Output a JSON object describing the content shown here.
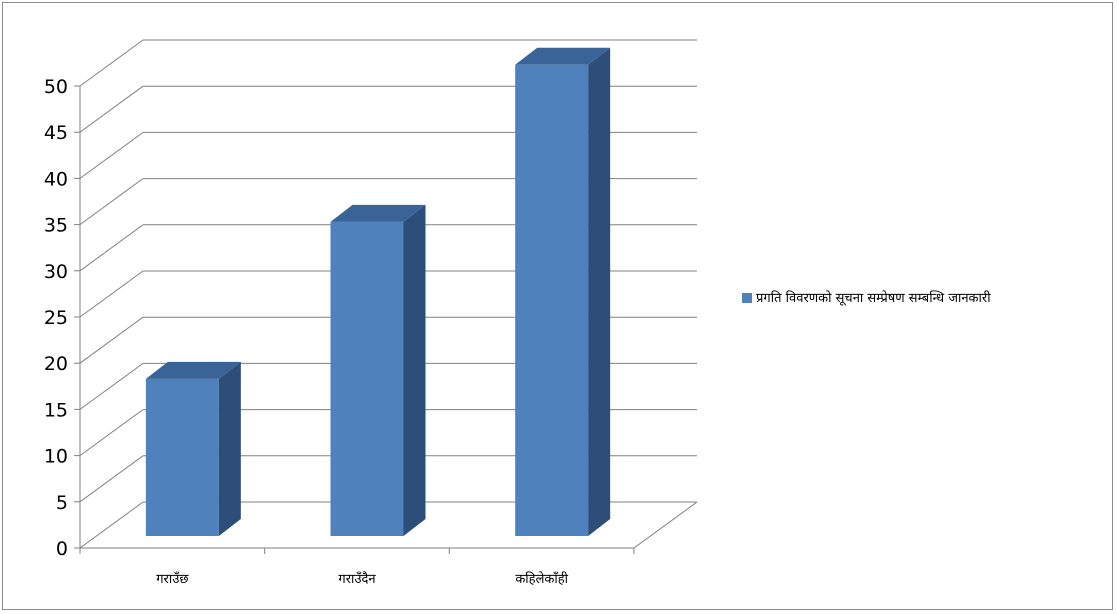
{
  "chart_data": {
    "type": "bar",
    "style": "3d-column",
    "categories": [
      "गराउँछ",
      "गराउँदैन",
      "कहिलेकाँही"
    ],
    "series": [
      {
        "name": "प्रगति विवरणको सूचना सम्प्रेषण सम्बन्धि जानकारी",
        "values": [
          17,
          34,
          51
        ]
      }
    ],
    "ylim": [
      0,
      50
    ],
    "yticks": [
      0,
      5,
      10,
      15,
      20,
      25,
      30,
      35,
      40,
      45,
      50
    ],
    "grid": true,
    "legend": "right",
    "colors": {
      "bar_front": "#4F81BD",
      "bar_side": "#2E4E7A",
      "bar_top": "#3A6397",
      "grid": "#808080"
    }
  }
}
